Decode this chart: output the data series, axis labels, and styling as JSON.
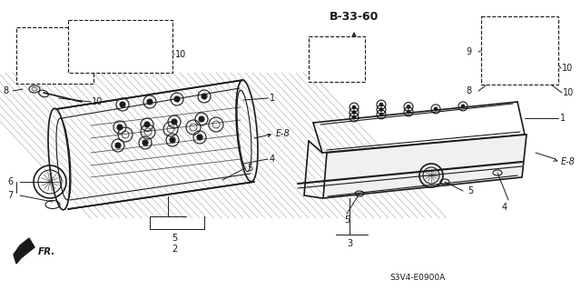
{
  "background_color": "#ffffff",
  "figure_width": 6.4,
  "figure_height": 3.19,
  "dpi": 100,
  "label_fs": 7,
  "bold_fs": 8,
  "color": "#1a1a1a",
  "model_text": "S3V4-E0900A",
  "b3360_text": "B-33-60",
  "e8_text": "E-8",
  "fr_text": "FR."
}
